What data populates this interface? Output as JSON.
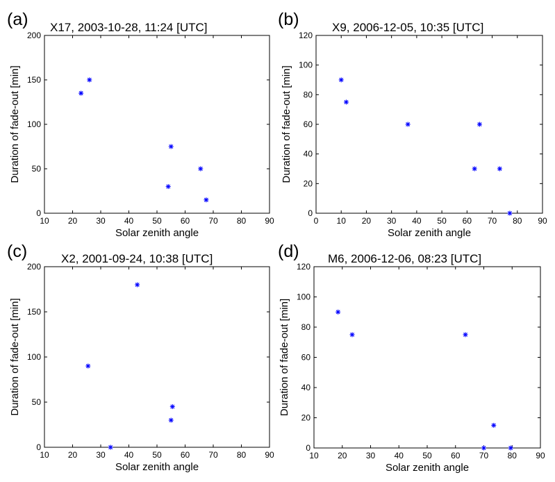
{
  "chart_data": [
    {
      "type": "scatter",
      "panel_label": "(a)",
      "title": "X17, 2003-10-28, 11:24 [UTC]",
      "xlabel": "Solar zenith angle",
      "ylabel": "Duration of fade-out [min]",
      "xlim": [
        10,
        90
      ],
      "ylim": [
        0,
        200
      ],
      "xticks": [
        10,
        20,
        30,
        40,
        50,
        60,
        70,
        80,
        90
      ],
      "yticks": [
        0,
        50,
        100,
        150,
        200
      ],
      "marker": "*",
      "color": "#0000ff",
      "points": [
        {
          "x": 23,
          "y": 135
        },
        {
          "x": 26,
          "y": 150
        },
        {
          "x": 54,
          "y": 30
        },
        {
          "x": 55,
          "y": 75
        },
        {
          "x": 65.5,
          "y": 50
        },
        {
          "x": 67.5,
          "y": 15
        }
      ]
    },
    {
      "type": "scatter",
      "panel_label": "(b)",
      "title": "X9, 2006-12-05, 10:35 [UTC]",
      "xlabel": "Solar zenith angle",
      "ylabel": "Duration of fade-out [min]",
      "xlim": [
        0,
        90
      ],
      "ylim": [
        0,
        120
      ],
      "xticks": [
        0,
        10,
        20,
        30,
        40,
        50,
        60,
        70,
        80,
        90
      ],
      "yticks": [
        0,
        20,
        40,
        60,
        80,
        100,
        120
      ],
      "marker": "*",
      "color": "#0000ff",
      "points": [
        {
          "x": 10,
          "y": 90
        },
        {
          "x": 12,
          "y": 75
        },
        {
          "x": 36.5,
          "y": 60
        },
        {
          "x": 63,
          "y": 30
        },
        {
          "x": 65,
          "y": 60
        },
        {
          "x": 73,
          "y": 30
        },
        {
          "x": 77,
          "y": 0
        }
      ]
    },
    {
      "type": "scatter",
      "panel_label": "(c)",
      "title": "X2, 2001-09-24, 10:38 [UTC]",
      "xlabel": "Solar zenith angle",
      "ylabel": "Duration of fade-out [min]",
      "xlim": [
        10,
        90
      ],
      "ylim": [
        0,
        200
      ],
      "xticks": [
        10,
        20,
        30,
        40,
        50,
        60,
        70,
        80,
        90
      ],
      "yticks": [
        0,
        50,
        100,
        150,
        200
      ],
      "marker": "*",
      "color": "#0000ff",
      "points": [
        {
          "x": 25.5,
          "y": 90
        },
        {
          "x": 33.5,
          "y": 0
        },
        {
          "x": 43,
          "y": 180
        },
        {
          "x": 55,
          "y": 30
        },
        {
          "x": 55.5,
          "y": 45
        }
      ]
    },
    {
      "type": "scatter",
      "panel_label": "(d)",
      "title": "M6, 2006-12-06, 08:23 [UTC]",
      "xlabel": "Solar zenith angle",
      "ylabel": "Duration of fade-out [min]",
      "xlim": [
        10,
        90
      ],
      "ylim": [
        0,
        120
      ],
      "xticks": [
        10,
        20,
        30,
        40,
        50,
        60,
        70,
        80,
        90
      ],
      "yticks": [
        0,
        20,
        40,
        60,
        80,
        100,
        120
      ],
      "marker": "*",
      "color": "#0000ff",
      "points": [
        {
          "x": 18.5,
          "y": 90
        },
        {
          "x": 23.5,
          "y": 75
        },
        {
          "x": 63.5,
          "y": 75
        },
        {
          "x": 70,
          "y": 0
        },
        {
          "x": 73.5,
          "y": 15
        },
        {
          "x": 79.5,
          "y": 0
        }
      ]
    }
  ]
}
